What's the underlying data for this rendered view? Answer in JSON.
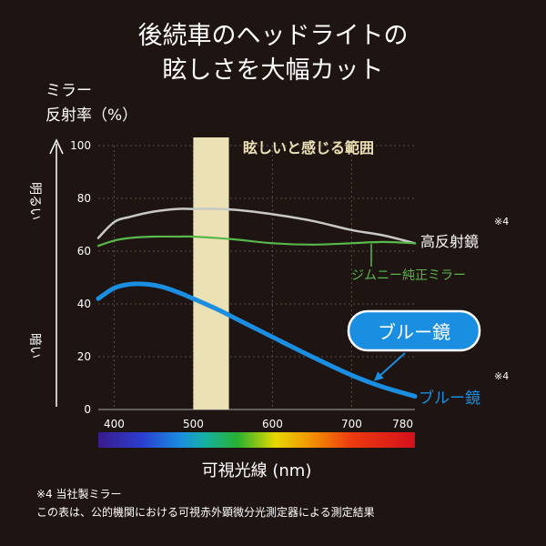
{
  "title": [
    "後続車のヘッドライトの",
    "眩しさを大幅カット"
  ],
  "ylabel": [
    "ミラー",
    "反射率（%）"
  ],
  "side_labels": {
    "bright": "明るい",
    "dark": "暗い"
  },
  "glare_band_label": "眩しいと感じる範囲",
  "callout": "ブルー鏡",
  "xlabel": "可視光線 (nm)",
  "notes": [
    "※4 当社製ミラー",
    "この表は、公的機関における可視赤外顕微分光測定器による測定結果"
  ],
  "colors": {
    "background": "#1e1412",
    "blue": "#1a8ee0",
    "green": "#58b84a",
    "gray": "#c8c8c8",
    "band": "#ece1b5"
  },
  "chart_data": {
    "type": "line",
    "xlabel": "可視光線 (nm)",
    "ylabel": "ミラー 反射率（%）",
    "xlim": [
      380,
      780
    ],
    "ylim": [
      0,
      100
    ],
    "x_ticks": [
      400,
      500,
      600,
      700,
      780
    ],
    "y_ticks": [
      0,
      20,
      40,
      60,
      80,
      100
    ],
    "grid": true,
    "highlight_band": {
      "label": "眩しいと感じる範囲",
      "x": [
        500,
        545
      ]
    },
    "series": [
      {
        "name": "高反射鏡",
        "note": "※4",
        "color": "#c8c8c8",
        "x": [
          380,
          400,
          420,
          450,
          480,
          500,
          530,
          560,
          600,
          650,
          700,
          740,
          780
        ],
        "y": [
          65,
          71,
          73,
          75,
          76,
          76,
          76,
          75.5,
          74,
          71.5,
          68,
          66,
          63
        ]
      },
      {
        "name": "ジムニー純正ミラー",
        "color": "#58b84a",
        "x": [
          380,
          400,
          420,
          450,
          480,
          500,
          550,
          600,
          650,
          700,
          740,
          780
        ],
        "y": [
          62,
          64,
          65,
          65.5,
          65.5,
          65.5,
          64.5,
          63,
          62.5,
          63,
          63.5,
          63
        ]
      },
      {
        "name": "ブルー鏡",
        "note": "※4",
        "color": "#1a8ee0",
        "x": [
          380,
          400,
          420,
          440,
          460,
          480,
          500,
          530,
          560,
          600,
          650,
          700,
          740,
          780
        ],
        "y": [
          42,
          46,
          47.5,
          47.5,
          46.5,
          44.5,
          42,
          38,
          33.5,
          27.5,
          20,
          13,
          8.5,
          5
        ]
      }
    ]
  }
}
